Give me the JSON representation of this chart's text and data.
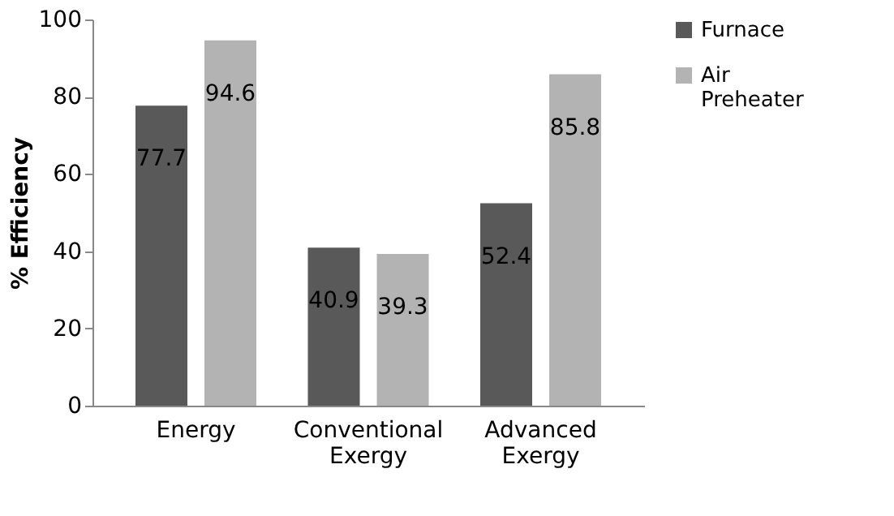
{
  "chart_data": {
    "type": "bar",
    "ylabel": "% Efficiency",
    "categories": [
      "Energy",
      "Conventional Exergy",
      "Advanced Exergy"
    ],
    "series": [
      {
        "name": "Furnace",
        "color": "#595959",
        "values": [
          77.7,
          40.9,
          52.4
        ]
      },
      {
        "name": "Air Preheater",
        "color": "#b3b3b3",
        "values": [
          94.6,
          39.3,
          85.8
        ]
      }
    ],
    "ylim": [
      0,
      100
    ],
    "yticks": [
      0,
      20,
      40,
      60,
      80,
      100
    ],
    "grid": false,
    "legend": "right",
    "data_labels": true
  }
}
